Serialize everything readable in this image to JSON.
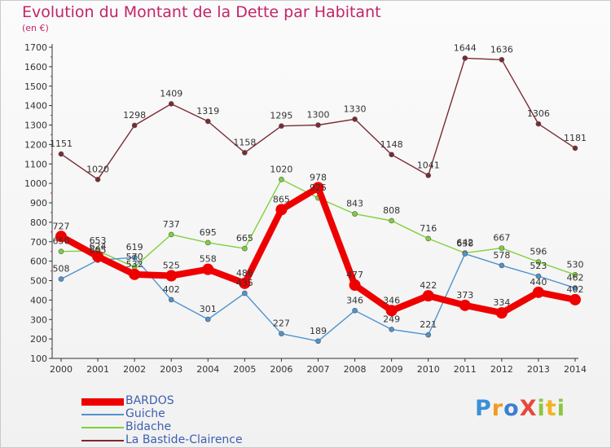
{
  "title": "Evolution du Montant de la Dette par Habitant",
  "subtitle": "(en €)",
  "logo": {
    "text": "ProXiti",
    "letters": [
      "P",
      "r",
      "o",
      "X",
      "i",
      "t",
      "i"
    ]
  },
  "chart_data": {
    "type": "line",
    "title": "Evolution du Montant de la Dette par Habitant",
    "subtitle": "(en €)",
    "x": [
      "2000",
      "2001",
      "2002",
      "2003",
      "2004",
      "2005",
      "2006",
      "2007",
      "2008",
      "2009",
      "2010",
      "2011",
      "2012",
      "2013",
      "2014"
    ],
    "ylim": [
      100,
      1700
    ],
    "yticks": [
      100,
      200,
      300,
      400,
      500,
      600,
      700,
      800,
      900,
      1000,
      1100,
      1200,
      1300,
      1400,
      1500,
      1600,
      1700
    ],
    "grid": false,
    "legend_position": "bottom-left",
    "series": [
      {
        "name": "BARDOS",
        "color": "#ee0000",
        "values": [
          727,
          624,
          532,
          525,
          558,
          486,
          865,
          978,
          477,
          346,
          422,
          373,
          334,
          440,
          402
        ]
      },
      {
        "name": "Guiche",
        "color": "#4f93cf",
        "values": [
          508,
          605,
          619,
          402,
          301,
          435,
          227,
          189,
          346,
          249,
          221,
          638,
          578,
          523,
          462
        ]
      },
      {
        "name": "Bidache",
        "color": "#7fd13b",
        "values": [
          650,
          653,
          570,
          737,
          695,
          665,
          1020,
          925,
          843,
          808,
          716,
          642,
          667,
          596,
          530
        ]
      },
      {
        "name": "La Bastide-Clairence",
        "color": "#7a2a32",
        "values": [
          1151,
          1020,
          1298,
          1409,
          1319,
          1158,
          1295,
          1300,
          1330,
          1148,
          1041,
          1644,
          1636,
          1306,
          1181
        ]
      }
    ]
  }
}
